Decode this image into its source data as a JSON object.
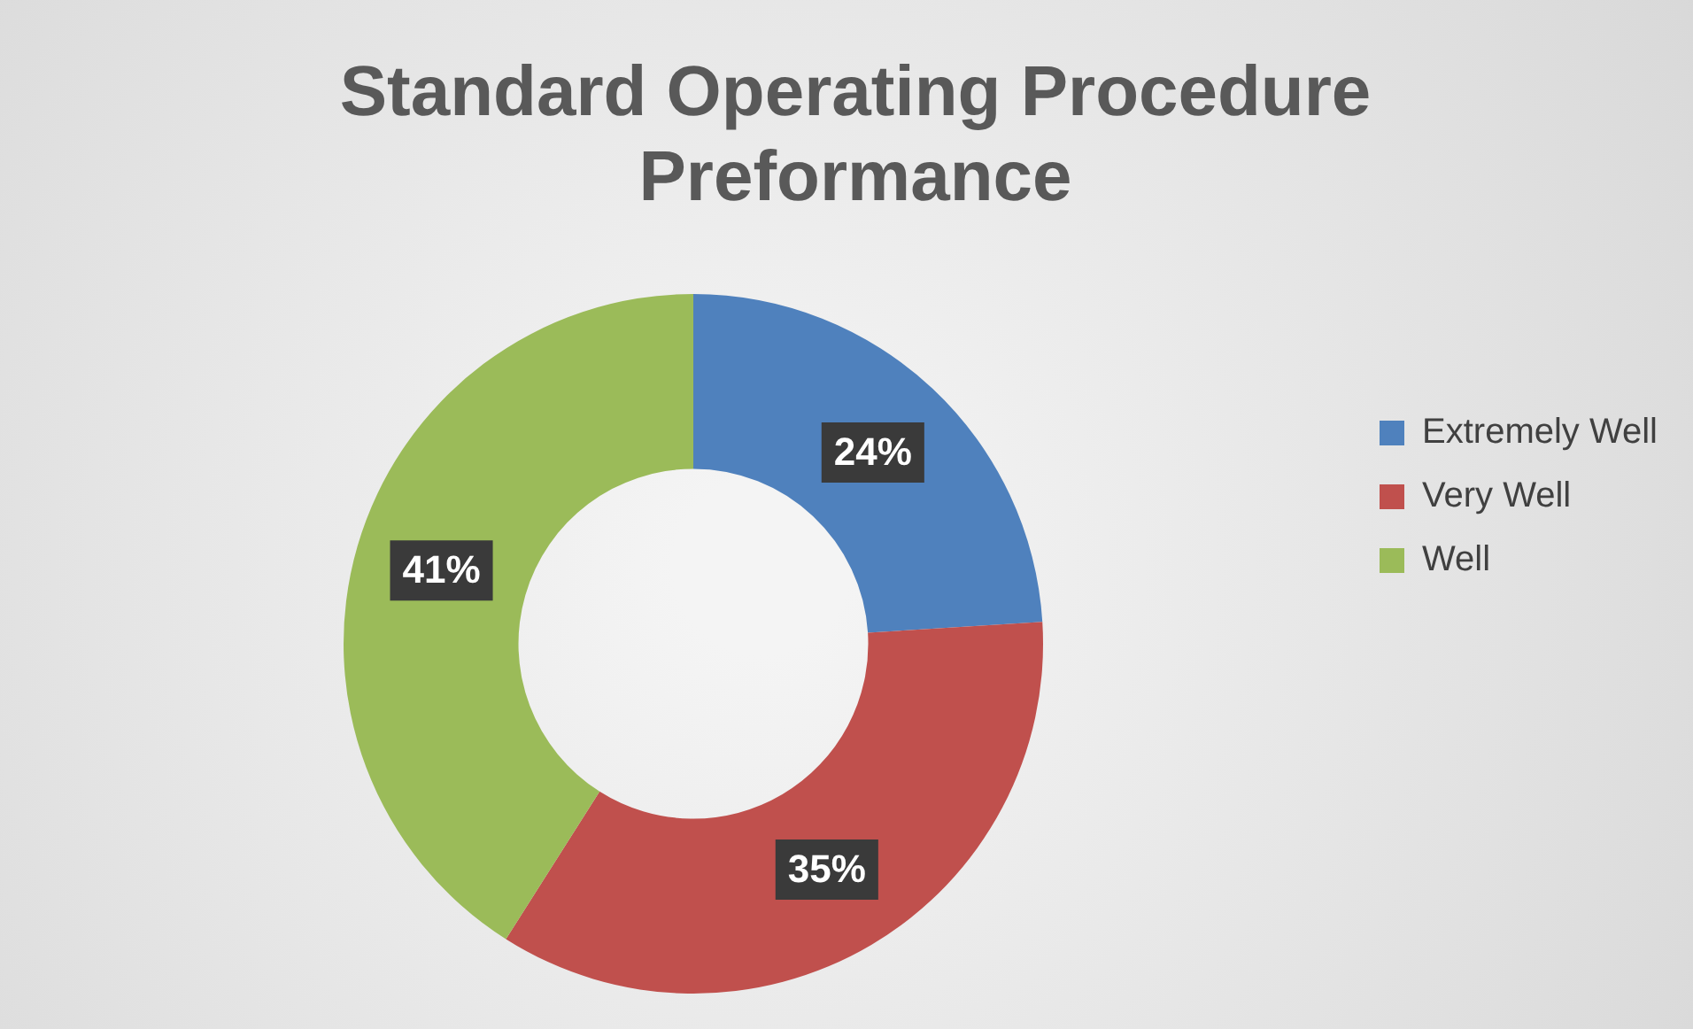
{
  "chart_data": {
    "type": "donut",
    "title": "Standard Operating Procedure Preformance",
    "categories": [
      "Extremely Well",
      "Very Well",
      "Well"
    ],
    "values": [
      24,
      35,
      41
    ],
    "colors": [
      "#4f81bd",
      "#c0504d",
      "#9bbb59"
    ],
    "value_labels": [
      "24%",
      "35%",
      "41%"
    ],
    "legend": "right"
  }
}
